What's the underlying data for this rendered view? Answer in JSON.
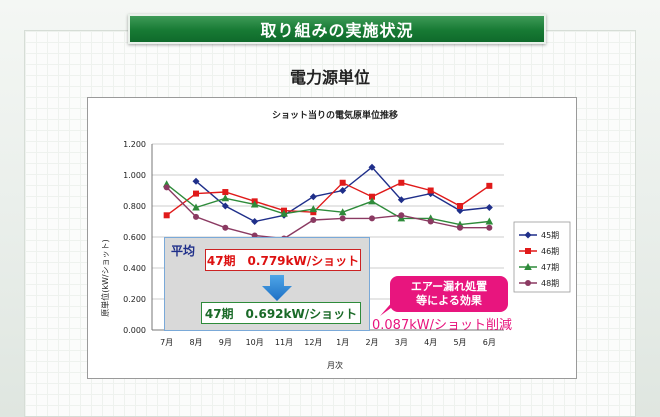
{
  "banner_title": "取り組みの実施状況",
  "subtitle": "電力源単位",
  "chart_data": {
    "type": "line",
    "title": "ショット当りの電気原単位推移",
    "xlabel": "月次",
    "ylabel": "原単位(kW/ショット)",
    "categories": [
      "7月",
      "8月",
      "9月",
      "10月",
      "11月",
      "12月",
      "1月",
      "2月",
      "3月",
      "4月",
      "5月",
      "6月"
    ],
    "ylim": [
      0,
      1.2
    ],
    "yticks": [
      "0.000",
      "0.200",
      "0.400",
      "0.600",
      "0.800",
      "1.000",
      "1.200"
    ],
    "grid": true,
    "legend_position": "right",
    "series": [
      {
        "name": "45期",
        "color": "#1f2f8a",
        "marker": "diamond",
        "values": [
          null,
          0.96,
          0.8,
          0.7,
          0.74,
          0.86,
          0.9,
          1.05,
          0.84,
          0.88,
          0.77,
          0.79
        ]
      },
      {
        "name": "46期",
        "color": "#e01a1a",
        "marker": "square",
        "values": [
          0.74,
          0.88,
          0.89,
          0.83,
          0.77,
          0.76,
          0.95,
          0.86,
          0.95,
          0.9,
          0.8,
          0.93
        ]
      },
      {
        "name": "47期",
        "color": "#2e8b3a",
        "marker": "triangle",
        "values": [
          0.94,
          0.79,
          0.85,
          0.81,
          0.75,
          0.78,
          0.76,
          0.83,
          0.72,
          0.72,
          0.68,
          0.7
        ]
      },
      {
        "name": "48期",
        "color": "#8b3a62",
        "marker": "circle",
        "values": [
          0.92,
          0.73,
          0.66,
          0.61,
          0.59,
          0.71,
          0.72,
          0.72,
          0.74,
          0.7,
          0.66,
          0.66
        ]
      }
    ]
  },
  "average_box": {
    "label": "平均",
    "before": "47期　0.779kW/ショット",
    "after": "47期　0.692kW/ショット"
  },
  "callout": {
    "line1": "エアー漏れ処置",
    "line2": "等による効果"
  },
  "reduction_text": "0.087kW/ショット削減",
  "colors": {
    "banner_green": "#177a34",
    "highlight_pink": "#e8157e"
  }
}
